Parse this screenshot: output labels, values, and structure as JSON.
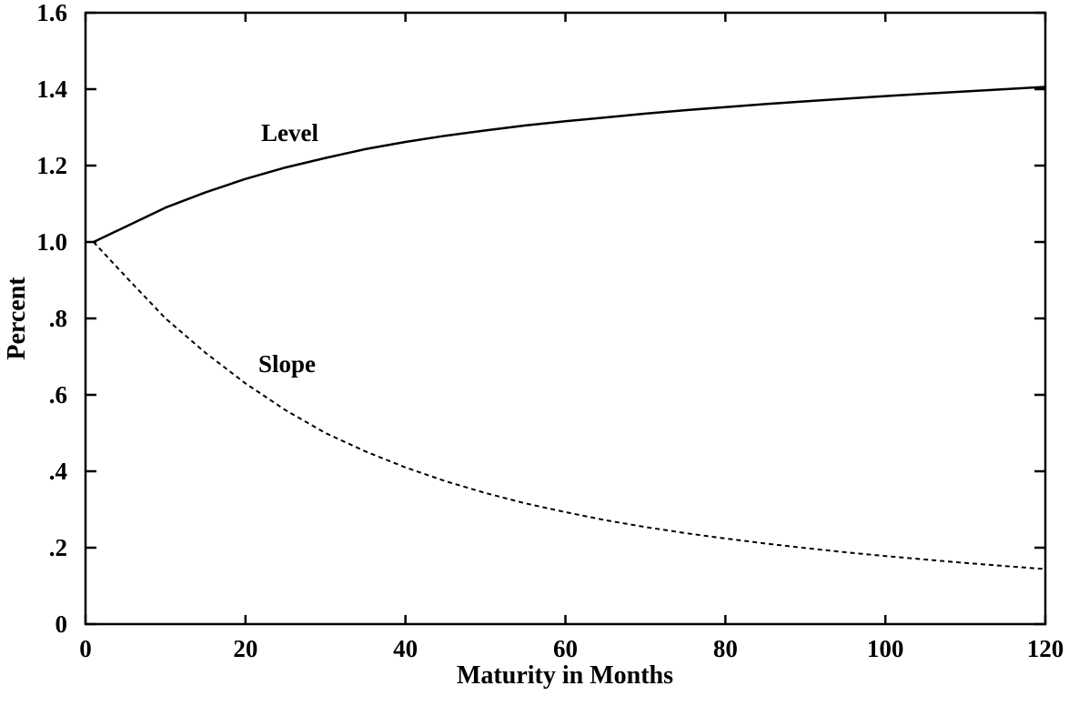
{
  "chart_data": {
    "type": "line",
    "title": "",
    "xlabel": "Maturity in Months",
    "ylabel": "Percent",
    "xlim": [
      0,
      120
    ],
    "ylim": [
      0,
      1.6
    ],
    "x_ticks": [
      0,
      20,
      40,
      60,
      80,
      100,
      120
    ],
    "x_tick_labels": [
      "0",
      "20",
      "40",
      "60",
      "80",
      "100",
      "120"
    ],
    "y_ticks": [
      0,
      0.2,
      0.4,
      0.6,
      0.8,
      1.0,
      1.2,
      1.4,
      1.6
    ],
    "y_tick_labels": [
      "0",
      ".2",
      ".4",
      ".6",
      ".8",
      "1.0",
      "1.2",
      "1.4",
      "1.6"
    ],
    "grid": false,
    "legend": "none",
    "series": [
      {
        "name": "Level",
        "style": "solid",
        "color": "#000000",
        "x": [
          1,
          5,
          10,
          15,
          20,
          25,
          30,
          35,
          40,
          45,
          50,
          55,
          60,
          65,
          70,
          75,
          80,
          85,
          90,
          95,
          100,
          105,
          110,
          115,
          120
        ],
        "values": [
          1.0,
          1.04,
          1.09,
          1.13,
          1.165,
          1.195,
          1.22,
          1.243,
          1.262,
          1.278,
          1.292,
          1.305,
          1.316,
          1.326,
          1.336,
          1.345,
          1.353,
          1.361,
          1.368,
          1.375,
          1.382,
          1.388,
          1.394,
          1.4,
          1.406
        ]
      },
      {
        "name": "Slope",
        "style": "dashed",
        "color": "#000000",
        "x": [
          1,
          5,
          10,
          15,
          20,
          25,
          30,
          35,
          40,
          45,
          50,
          55,
          60,
          65,
          70,
          75,
          80,
          85,
          90,
          95,
          100,
          105,
          110,
          115,
          120
        ],
        "values": [
          1.0,
          0.91,
          0.8,
          0.71,
          0.63,
          0.56,
          0.5,
          0.452,
          0.41,
          0.374,
          0.343,
          0.316,
          0.293,
          0.272,
          0.254,
          0.238,
          0.224,
          0.211,
          0.199,
          0.188,
          0.178,
          0.169,
          0.16,
          0.152,
          0.144
        ]
      }
    ]
  }
}
